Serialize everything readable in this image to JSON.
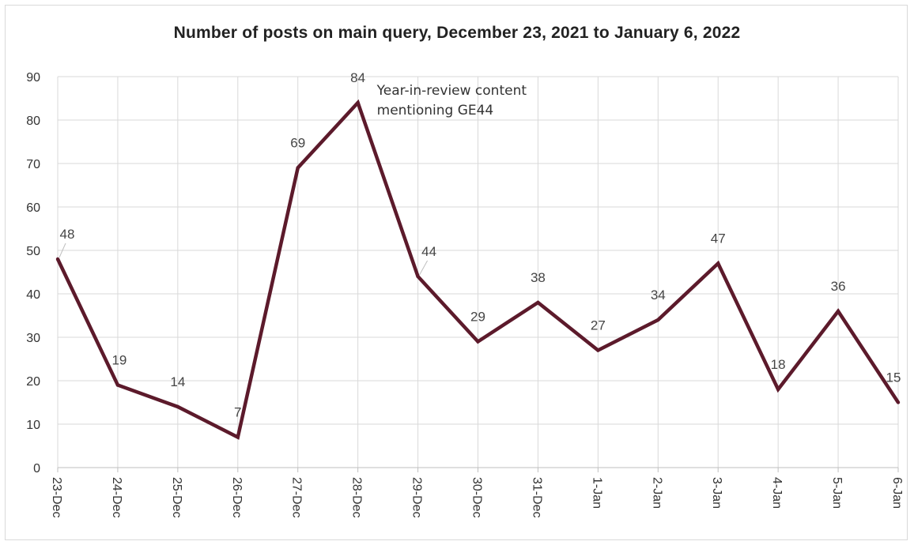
{
  "chart_data": {
    "type": "line",
    "title": "Number of posts on main query, December 23, 2021 to January 6, 2022",
    "xlabel": "",
    "ylabel": "",
    "categories": [
      "23-Dec",
      "24-Dec",
      "25-Dec",
      "26-Dec",
      "27-Dec",
      "28-Dec",
      "29-Dec",
      "30-Dec",
      "31-Dec",
      "1-Jan",
      "2-Jan",
      "3-Jan",
      "4-Jan",
      "5-Jan",
      "6-Jan"
    ],
    "series": [
      {
        "values": [
          48,
          19,
          14,
          7,
          69,
          84,
          44,
          29,
          38,
          27,
          34,
          47,
          18,
          36,
          15
        ],
        "color": "#5c1a2b"
      }
    ],
    "data_labels": [
      "48",
      "19",
      "14",
      "7",
      "69",
      "84",
      "44",
      "29",
      "38",
      "27",
      "34",
      "47",
      "18",
      "36",
      "15"
    ],
    "yticks": [
      0,
      10,
      20,
      30,
      40,
      50,
      60,
      70,
      80,
      90
    ],
    "ylim": [
      0,
      90
    ],
    "grid": true,
    "annotations": [
      {
        "category": "28-Dec",
        "lines": [
          "Year-in-review content",
          "mentioning GE44"
        ]
      }
    ]
  },
  "colors": {
    "line": "#5c1a2b",
    "grid": "#d9d9d9",
    "text": "#333333"
  }
}
